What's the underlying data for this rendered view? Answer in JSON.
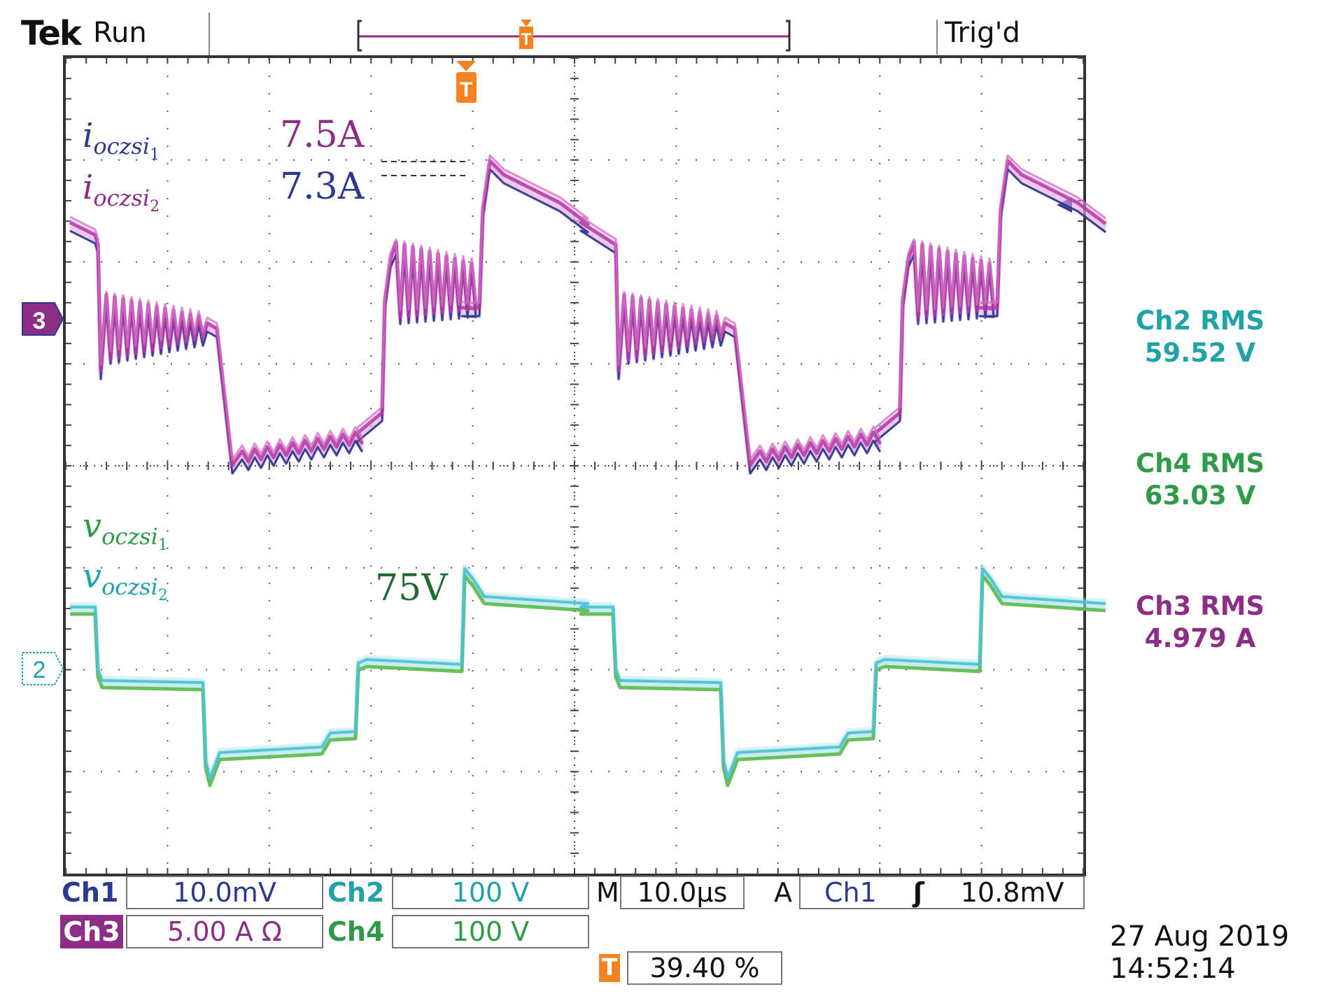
{
  "header": {
    "brand": "Tek",
    "run_state": "Run",
    "trigger_status": "Trig'd",
    "trigger_marker": "T"
  },
  "annotations": {
    "i1_label_base": "i",
    "i1_label_sub": "oczsi",
    "i1_label_subsub": "1",
    "i2_label_base": "i",
    "i2_label_sub": "oczsi",
    "i2_label_subsub": "2",
    "v1_label_base": "v",
    "v1_label_sub": "oczsi",
    "v1_label_subsub": "1",
    "v2_label_base": "v",
    "v2_label_sub": "oczsi",
    "v2_label_subsub": "2",
    "peak_i_high": "7.5A",
    "peak_i_low": "7.3A",
    "peak_v": "75V"
  },
  "channel_markers": {
    "ch3": "3",
    "ch2": "2",
    "ch1_trigger_level": "◀"
  },
  "measurements": [
    {
      "title": "Ch2 RMS",
      "value": "59.52 V",
      "color": "#1fa3a7"
    },
    {
      "title": "Ch4 RMS",
      "value": "63.03 V",
      "color": "#2f9b48"
    },
    {
      "title": "Ch3 RMS",
      "value": "4.979 A",
      "color": "#8e2d86"
    }
  ],
  "settings": {
    "ch1_label": "Ch1",
    "ch1_value": "10.0mV",
    "ch2_label": "Ch2",
    "ch2_value": "100 V",
    "ch3_label": "Ch3",
    "ch3_value": "5.00 A Ω",
    "ch4_label": "Ch4",
    "ch4_value": "100 V",
    "timebase_label": "M",
    "timebase_value": "10.0μs",
    "trigger_label": "A",
    "trigger_source": "Ch1",
    "trigger_slope": "ʃ",
    "trigger_level": "10.8mV",
    "position_marker": "T",
    "position_value": "39.40 %"
  },
  "timestamp": {
    "date": "27 Aug 2019",
    "time": "14:52:14"
  },
  "colors": {
    "ch1": "#2b3990",
    "ch2": "#1fa3a7",
    "ch3": "#8e2d86",
    "ch4": "#2f9b48",
    "trigger": "#f58220"
  }
}
